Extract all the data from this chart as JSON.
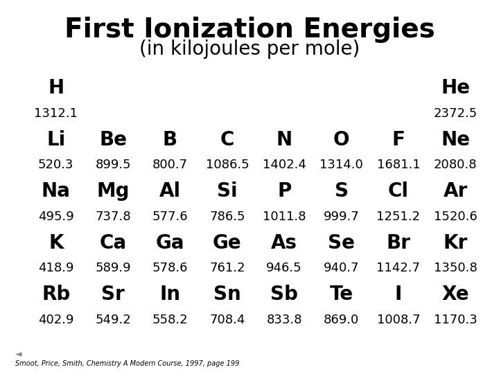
{
  "title": "First Ionization Energies",
  "subtitle": "(in kilojoules per mole)",
  "background_color": "#ffffff",
  "text_color": "#000000",
  "title_fontsize": 28,
  "subtitle_fontsize": 20,
  "element_fontsize": 20,
  "value_fontsize": 13,
  "footnote": "Smoot, Price, Smith, Chemistry A Modern Course, 1997, page 199",
  "elements": [
    {
      "symbol": "H",
      "value": "1312.1",
      "col": 0,
      "row": 0
    },
    {
      "symbol": "He",
      "value": "2372.5",
      "col": 7,
      "row": 0
    },
    {
      "symbol": "Li",
      "value": "520.3",
      "col": 0,
      "row": 1
    },
    {
      "symbol": "Be",
      "value": "899.5",
      "col": 1,
      "row": 1
    },
    {
      "symbol": "B",
      "value": "800.7",
      "col": 2,
      "row": 1
    },
    {
      "symbol": "C",
      "value": "1086.5",
      "col": 3,
      "row": 1
    },
    {
      "symbol": "N",
      "value": "1402.4",
      "col": 4,
      "row": 1
    },
    {
      "symbol": "O",
      "value": "1314.0",
      "col": 5,
      "row": 1
    },
    {
      "symbol": "F",
      "value": "1681.1",
      "col": 6,
      "row": 1
    },
    {
      "symbol": "Ne",
      "value": "2080.8",
      "col": 7,
      "row": 1
    },
    {
      "symbol": "Na",
      "value": "495.9",
      "col": 0,
      "row": 2
    },
    {
      "symbol": "Mg",
      "value": "737.8",
      "col": 1,
      "row": 2
    },
    {
      "symbol": "Al",
      "value": "577.6",
      "col": 2,
      "row": 2
    },
    {
      "symbol": "Si",
      "value": "786.5",
      "col": 3,
      "row": 2
    },
    {
      "symbol": "P",
      "value": "1011.8",
      "col": 4,
      "row": 2
    },
    {
      "symbol": "S",
      "value": "999.7",
      "col": 5,
      "row": 2
    },
    {
      "symbol": "Cl",
      "value": "1251.2",
      "col": 6,
      "row": 2
    },
    {
      "symbol": "Ar",
      "value": "1520.6",
      "col": 7,
      "row": 2
    },
    {
      "symbol": "K",
      "value": "418.9",
      "col": 0,
      "row": 3
    },
    {
      "symbol": "Ca",
      "value": "589.9",
      "col": 1,
      "row": 3
    },
    {
      "symbol": "Ga",
      "value": "578.6",
      "col": 2,
      "row": 3
    },
    {
      "symbol": "Ge",
      "value": "761.2",
      "col": 3,
      "row": 3
    },
    {
      "symbol": "As",
      "value": "946.5",
      "col": 4,
      "row": 3
    },
    {
      "symbol": "Se",
      "value": "940.7",
      "col": 5,
      "row": 3
    },
    {
      "symbol": "Br",
      "value": "1142.7",
      "col": 6,
      "row": 3
    },
    {
      "symbol": "Kr",
      "value": "1350.8",
      "col": 7,
      "row": 3
    },
    {
      "symbol": "Rb",
      "value": "402.9",
      "col": 0,
      "row": 4
    },
    {
      "symbol": "Sr",
      "value": "549.2",
      "col": 1,
      "row": 4
    },
    {
      "symbol": "In",
      "value": "558.2",
      "col": 2,
      "row": 4
    },
    {
      "symbol": "Sn",
      "value": "708.4",
      "col": 3,
      "row": 4
    },
    {
      "symbol": "Sb",
      "value": "833.8",
      "col": 4,
      "row": 4
    },
    {
      "symbol": "Te",
      "value": "869.0",
      "col": 5,
      "row": 4
    },
    {
      "symbol": "I",
      "value": "1008.7",
      "col": 6,
      "row": 4
    },
    {
      "symbol": "Xe",
      "value": "1170.3",
      "col": 7,
      "row": 4
    }
  ],
  "ncols": 8,
  "nrows": 5
}
